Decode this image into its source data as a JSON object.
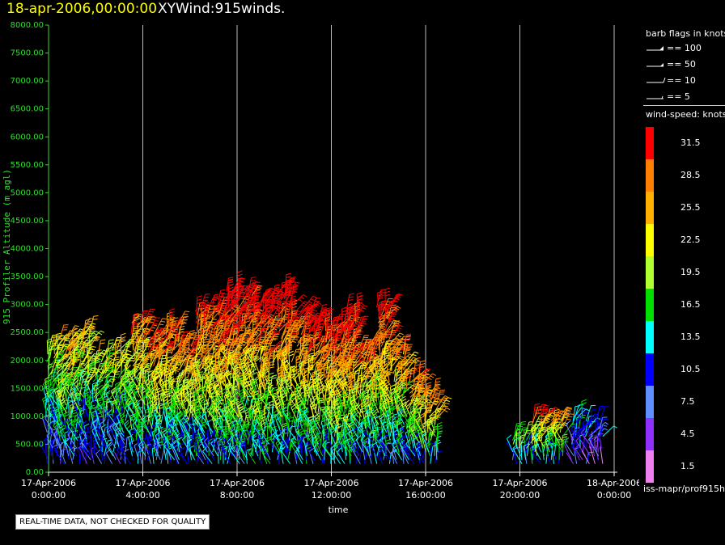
{
  "header": {
    "date_label": "18-apr-2006,00:00:00",
    "plot_name": "XYWind:915winds."
  },
  "chart_data": {
    "type": "wind-barb time-height",
    "ylabel": "915 Profiler Altitude (m agl)",
    "xlabel": "time",
    "ylim": [
      0,
      8000
    ],
    "y_ticks": [
      "0.00",
      "500.00",
      "1000.00",
      "1500.00",
      "2000.00",
      "2500.00",
      "3000.00",
      "3500.00",
      "4000.00",
      "4500.00",
      "5000.00",
      "5500.00",
      "6000.00",
      "6500.00",
      "7000.00",
      "7500.00",
      "8000.00"
    ],
    "x_ticks": [
      {
        "date": "17-Apr-2006",
        "time": "0:00:00"
      },
      {
        "date": "17-Apr-2006",
        "time": "4:00:00"
      },
      {
        "date": "17-Apr-2006",
        "time": "8:00:00"
      },
      {
        "date": "17-Apr-2006",
        "time": "12:00:00"
      },
      {
        "date": "17-Apr-2006",
        "time": "16:00:00"
      },
      {
        "date": "17-Apr-2006",
        "time": "20:00:00"
      },
      {
        "date": "18-Apr-2006",
        "time": "0:00:00"
      }
    ],
    "xlim_hours": [
      0,
      24
    ],
    "grid": "vertical lines at each x tick",
    "observation_profiles": [
      {
        "hour": 0.2,
        "alt_max": 2300,
        "speed": 20
      },
      {
        "hour": 0.8,
        "alt_max": 2400,
        "speed": 24
      },
      {
        "hour": 1.5,
        "alt_max": 2500,
        "speed": 22
      },
      {
        "hour": 2.2,
        "alt_max": 2100,
        "speed": 20
      },
      {
        "hour": 3.0,
        "alt_max": 2200,
        "speed": 21
      },
      {
        "hour": 3.8,
        "alt_max": 2700,
        "speed": 26
      },
      {
        "hour": 4.5,
        "alt_max": 2500,
        "speed": 27
      },
      {
        "hour": 5.2,
        "alt_max": 2600,
        "speed": 28
      },
      {
        "hour": 5.8,
        "alt_max": 2300,
        "speed": 27
      },
      {
        "hour": 6.5,
        "alt_max": 2900,
        "speed": 29
      },
      {
        "hour": 7.2,
        "alt_max": 3000,
        "speed": 30
      },
      {
        "hour": 7.8,
        "alt_max": 3250,
        "speed": 32
      },
      {
        "hour": 8.5,
        "alt_max": 3200,
        "speed": 31
      },
      {
        "hour": 9.2,
        "alt_max": 3100,
        "speed": 31
      },
      {
        "hour": 10.0,
        "alt_max": 3250,
        "speed": 32
      },
      {
        "hour": 10.8,
        "alt_max": 2900,
        "speed": 30
      },
      {
        "hour": 11.5,
        "alt_max": 2700,
        "speed": 30
      },
      {
        "hour": 12.2,
        "alt_max": 2600,
        "speed": 31
      },
      {
        "hour": 12.8,
        "alt_max": 2900,
        "speed": 32
      },
      {
        "hour": 13.5,
        "alt_max": 2300,
        "speed": 28
      },
      {
        "hour": 14.2,
        "alt_max": 3000,
        "speed": 30
      },
      {
        "hour": 14.8,
        "alt_max": 2200,
        "speed": 26
      },
      {
        "hour": 15.5,
        "alt_max": 1700,
        "speed": 27
      },
      {
        "hour": 16.2,
        "alt_max": 1400,
        "speed": 28
      },
      {
        "hour": 20.0,
        "alt_max": 700,
        "speed": 20
      },
      {
        "hour": 20.8,
        "alt_max": 1000,
        "speed": 27
      },
      {
        "hour": 21.5,
        "alt_max": 950,
        "speed": 25
      },
      {
        "hour": 22.5,
        "alt_max": 1000,
        "speed": 14
      },
      {
        "hour": 23.2,
        "alt_max": 900,
        "speed": 10
      }
    ]
  },
  "legend": {
    "barb_title": "barb flags in knots",
    "barb_items": [
      {
        "label": "== 100",
        "kind": "flag"
      },
      {
        "label": "== 50",
        "kind": "pennant"
      },
      {
        "label": "== 10",
        "kind": "full"
      },
      {
        "label": "== 5",
        "kind": "half"
      }
    ],
    "colorscale_title": "wind-speed: knots",
    "colorscale": [
      {
        "label": "31.5",
        "color": "#ff0000"
      },
      {
        "label": "28.5",
        "color": "#ff8000"
      },
      {
        "label": "25.5",
        "color": "#ffb000"
      },
      {
        "label": "22.5",
        "color": "#ffff00"
      },
      {
        "label": "19.5",
        "color": "#b0ff30"
      },
      {
        "label": "16.5",
        "color": "#00e000"
      },
      {
        "label": "13.5",
        "color": "#00ffff"
      },
      {
        "label": "10.5",
        "color": "#0000ff"
      },
      {
        "label": "7.5",
        "color": "#6090ff"
      },
      {
        "label": "4.5",
        "color": "#9030ff"
      },
      {
        "label": "1.5",
        "color": "#ee80ee"
      }
    ]
  },
  "footer": {
    "source": "iss-mapr/prof915h",
    "qc_notice": "REAL-TIME DATA, NOT CHECKED FOR QUALITY"
  },
  "colors": {
    "axis": "#33dd33",
    "grid": "#bbbbbb",
    "title_date": "#ffff00"
  }
}
